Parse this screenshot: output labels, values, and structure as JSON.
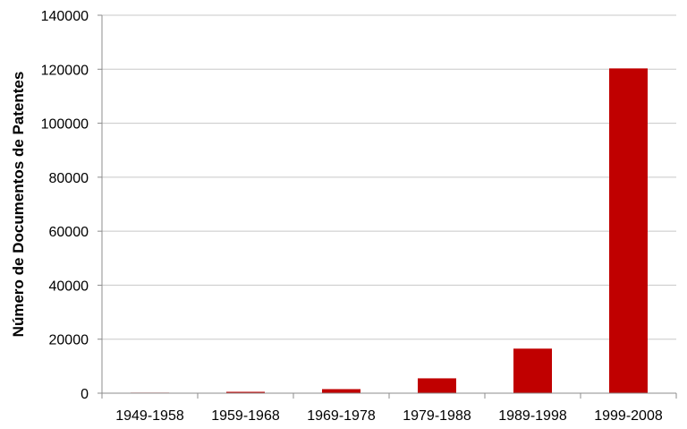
{
  "chart_data": {
    "type": "bar",
    "title": "",
    "xlabel": "",
    "ylabel": "Número de Documentos de Patentes",
    "categories": [
      "1949-1958",
      "1959-1968",
      "1969-1978",
      "1979-1988",
      "1989-1998",
      "1999-2008"
    ],
    "values": [
      200,
      500,
      1500,
      5500,
      16500,
      120300
    ],
    "ylim": [
      0,
      140000
    ],
    "yticks": [
      0,
      20000,
      40000,
      60000,
      80000,
      100000,
      120000,
      140000
    ],
    "grid": true,
    "legend": "none",
    "bar_color": "#c00000",
    "grid_color": "#c8c8c8",
    "axis_color": "#8c8c8c"
  }
}
